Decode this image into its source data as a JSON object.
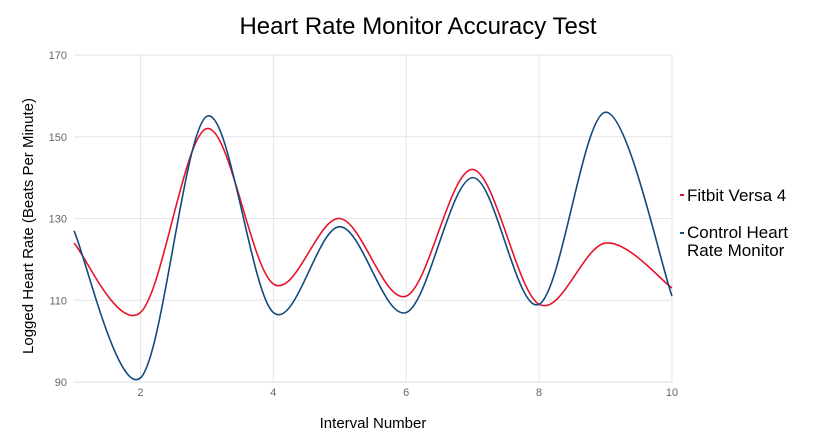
{
  "chart_data": {
    "type": "line",
    "title": "Heart Rate Monitor Accuracy Test",
    "xlabel": "Interval Number",
    "ylabel": "Logged Heart Rate (Beats Per Minute)",
    "x": [
      1,
      2,
      3,
      4,
      5,
      6,
      7,
      8,
      9,
      10
    ],
    "xlim": [
      1,
      10
    ],
    "ylim": [
      90,
      170
    ],
    "xticks": [
      2,
      4,
      6,
      8,
      10
    ],
    "yticks": [
      90,
      110,
      130,
      150,
      170
    ],
    "grid": true,
    "smooth": true,
    "legend_position": "right",
    "series": [
      {
        "name": "Fitbit Versa 4",
        "color": "#e8132b",
        "values": [
          124,
          107,
          152,
          114,
          130,
          111,
          142,
          109,
          124,
          113
        ]
      },
      {
        "name": "Control Heart Rate Monitor",
        "color": "#124a7e",
        "values": [
          127,
          91,
          155,
          107,
          128,
          107,
          140,
          109,
          156,
          111
        ]
      }
    ]
  }
}
